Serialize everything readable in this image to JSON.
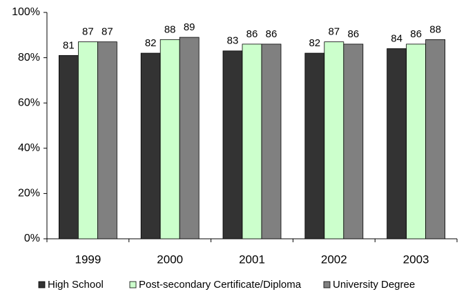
{
  "chart_data": {
    "type": "bar",
    "categories": [
      "1999",
      "2000",
      "2001",
      "2002",
      "2003"
    ],
    "series": [
      {
        "name": "High School",
        "color": "#333333",
        "values": [
          81,
          82,
          83,
          82,
          84
        ]
      },
      {
        "name": "Post-secondary Certificate/Diploma",
        "color": "#ccffcc",
        "values": [
          87,
          88,
          86,
          87,
          86
        ]
      },
      {
        "name": "University Degree",
        "color": "#808080",
        "values": [
          87,
          89,
          86,
          86,
          88
        ]
      }
    ],
    "ylim": [
      0,
      100
    ],
    "yticks": [
      {
        "value": 0,
        "label": "0%"
      },
      {
        "value": 20,
        "label": "20%"
      },
      {
        "value": 40,
        "label": "40%"
      },
      {
        "value": 60,
        "label": "60%"
      },
      {
        "value": 80,
        "label": "80%"
      },
      {
        "value": 100,
        "label": "100%"
      }
    ],
    "grid": false,
    "legend": "bottom"
  }
}
